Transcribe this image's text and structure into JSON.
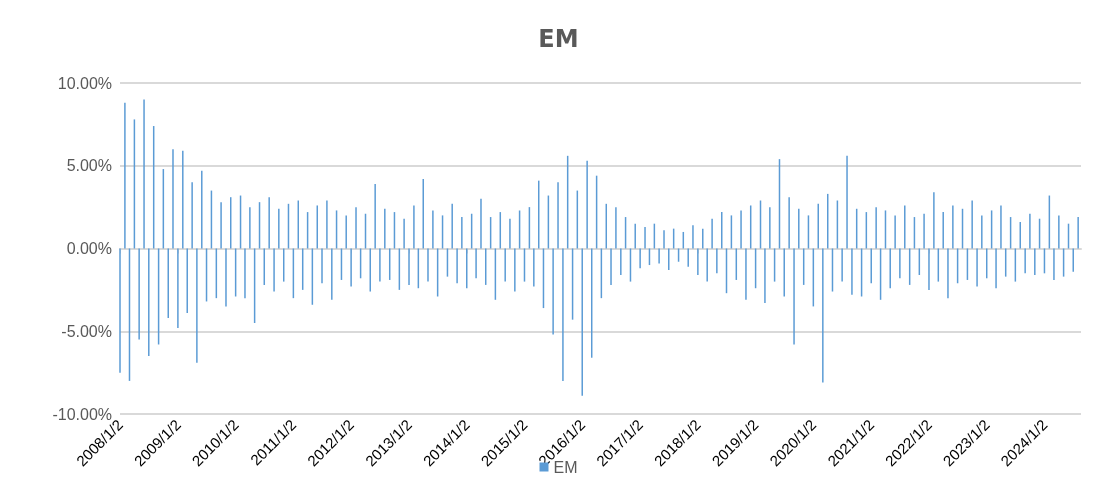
{
  "chart_data": {
    "type": "bar",
    "title": "EM",
    "legend": "bottom",
    "grid": "y",
    "x": [
      "2008-01-02",
      "2008-02-02",
      "2008-03-02",
      "2008-04-02",
      "2008-05-02",
      "2008-06-02",
      "2008-07-02",
      "2008-08-02",
      "2008-09-02",
      "2008-10-02",
      "2008-11-02",
      "2008-12-02",
      "2009-01-02",
      "2009-02-02",
      "2009-03-02",
      "2009-04-02",
      "2009-05-02",
      "2009-06-02",
      "2009-07-02",
      "2009-08-02",
      "2009-09-02",
      "2009-10-02",
      "2009-11-02",
      "2009-12-02",
      "2010-01-02",
      "2010-02-02",
      "2010-03-02",
      "2010-04-02",
      "2010-05-02",
      "2010-06-02",
      "2010-07-02",
      "2010-08-02",
      "2010-09-02",
      "2010-10-02",
      "2010-11-02",
      "2010-12-02",
      "2011-01-02",
      "2011-02-02",
      "2011-03-02",
      "2011-04-02",
      "2011-05-02",
      "2011-06-02",
      "2011-07-02",
      "2011-08-02",
      "2011-09-02",
      "2011-10-02",
      "2011-11-02",
      "2011-12-02",
      "2012-01-02",
      "2012-02-02",
      "2012-03-02",
      "2012-04-02",
      "2012-05-02",
      "2012-06-02",
      "2012-07-02",
      "2012-08-02",
      "2012-09-02",
      "2012-10-02",
      "2012-11-02",
      "2012-12-02",
      "2013-01-02",
      "2013-02-02",
      "2013-03-02",
      "2013-04-02",
      "2013-05-02",
      "2013-06-02",
      "2013-07-02",
      "2013-08-02",
      "2013-09-02",
      "2013-10-02",
      "2013-11-02",
      "2013-12-02",
      "2014-01-02",
      "2014-02-02",
      "2014-03-02",
      "2014-04-02",
      "2014-05-02",
      "2014-06-02",
      "2014-07-02",
      "2014-08-02",
      "2014-09-02",
      "2014-10-02",
      "2014-11-02",
      "2014-12-02",
      "2015-01-02",
      "2015-02-02",
      "2015-03-02",
      "2015-04-02",
      "2015-05-02",
      "2015-06-02",
      "2015-07-02",
      "2015-08-02",
      "2015-09-02",
      "2015-10-02",
      "2015-11-02",
      "2015-12-02",
      "2016-01-02",
      "2016-02-02",
      "2016-03-02",
      "2016-04-02",
      "2016-05-02",
      "2016-06-02",
      "2016-07-02",
      "2016-08-02",
      "2016-09-02",
      "2016-10-02",
      "2016-11-02",
      "2016-12-02",
      "2017-01-02",
      "2017-02-02",
      "2017-03-02",
      "2017-04-02",
      "2017-05-02",
      "2017-06-02",
      "2017-07-02",
      "2017-08-02",
      "2017-09-02",
      "2017-10-02",
      "2017-11-02",
      "2017-12-02",
      "2018-01-02",
      "2018-02-02",
      "2018-03-02",
      "2018-04-02",
      "2018-05-02",
      "2018-06-02",
      "2018-07-02",
      "2018-08-02",
      "2018-09-02",
      "2018-10-02",
      "2018-11-02",
      "2018-12-02",
      "2019-01-02",
      "2019-02-02",
      "2019-03-02",
      "2019-04-02",
      "2019-05-02",
      "2019-06-02",
      "2019-07-02",
      "2019-08-02",
      "2019-09-02",
      "2019-10-02",
      "2019-11-02",
      "2019-12-02",
      "2020-01-02",
      "2020-02-02",
      "2020-03-02",
      "2020-04-02",
      "2020-05-02",
      "2020-06-02",
      "2020-07-02",
      "2020-08-02",
      "2020-09-02",
      "2020-10-02",
      "2020-11-02",
      "2020-12-02",
      "2021-01-02",
      "2021-02-02",
      "2021-03-02",
      "2021-04-02",
      "2021-05-02",
      "2021-06-02",
      "2021-07-02",
      "2021-08-02",
      "2021-09-02",
      "2021-10-02",
      "2021-11-02",
      "2021-12-02",
      "2022-01-02",
      "2022-02-02",
      "2022-03-02",
      "2022-04-02",
      "2022-05-02",
      "2022-06-02",
      "2022-07-02",
      "2022-08-02",
      "2022-09-02",
      "2022-10-02",
      "2022-11-02",
      "2022-12-02",
      "2023-01-02",
      "2023-02-02",
      "2023-03-02",
      "2023-04-02",
      "2023-05-02",
      "2023-06-02",
      "2023-07-02",
      "2023-08-02",
      "2023-09-02",
      "2023-10-02",
      "2023-11-02",
      "2023-12-02",
      "2024-01-02",
      "2024-02-02",
      "2024-03-02",
      "2024-04-02",
      "2024-05-02",
      "2024-06-02",
      "2024-07-02",
      "2024-08-02"
    ],
    "series": [
      {
        "name": "EM",
        "color": "#5b9bd5",
        "values": [
          -7.5,
          8.8,
          -8.0,
          7.8,
          -5.5,
          9.0,
          -6.5,
          7.4,
          -5.8,
          4.8,
          -4.2,
          6.0,
          -4.8,
          5.9,
          -3.9,
          4.0,
          -6.9,
          4.7,
          -3.2,
          3.5,
          -3.0,
          2.8,
          -3.5,
          3.1,
          -2.9,
          3.2,
          -3.0,
          2.5,
          -4.5,
          2.8,
          -2.2,
          3.1,
          -2.6,
          2.4,
          -2.0,
          2.7,
          -3.0,
          2.9,
          -2.5,
          2.2,
          -3.4,
          2.6,
          -2.1,
          2.9,
          -3.1,
          2.3,
          -1.9,
          2.0,
          -2.3,
          2.5,
          -1.8,
          2.1,
          -2.6,
          3.9,
          -2.0,
          2.4,
          -1.9,
          2.2,
          -2.5,
          1.8,
          -2.2,
          2.6,
          -2.4,
          4.2,
          -2.0,
          2.3,
          -2.9,
          2.0,
          -1.7,
          2.7,
          -2.1,
          1.9,
          -2.4,
          2.1,
          -1.8,
          3.0,
          -2.2,
          1.9,
          -3.1,
          2.2,
          -2.0,
          1.8,
          -2.6,
          2.3,
          -2.0,
          2.5,
          -2.3,
          4.1,
          -3.6,
          3.2,
          -5.2,
          4.0,
          -8.0,
          5.6,
          -4.3,
          3.5,
          -8.9,
          5.3,
          -6.6,
          4.4,
          -3.0,
          2.7,
          -2.2,
          2.5,
          -1.6,
          1.9,
          -2.0,
          1.5,
          -1.2,
          1.3,
          -1.0,
          1.5,
          -0.9,
          1.1,
          -1.3,
          1.2,
          -0.8,
          1.0,
          -1.1,
          1.4,
          -1.6,
          1.2,
          -2.0,
          1.8,
          -1.5,
          2.2,
          -2.7,
          2.0,
          -1.9,
          2.3,
          -3.1,
          2.6,
          -2.4,
          2.9,
          -3.3,
          2.5,
          -2.0,
          5.4,
          -2.9,
          3.1,
          -5.8,
          2.4,
          -2.2,
          2.0,
          -3.5,
          2.7,
          -8.1,
          3.3,
          -2.6,
          2.9,
          -2.0,
          5.6,
          -2.8,
          2.4,
          -2.9,
          2.2,
          -2.1,
          2.5,
          -3.1,
          2.3,
          -2.4,
          2.0,
          -1.8,
          2.6,
          -2.2,
          1.9,
          -1.6,
          2.1,
          -2.5,
          3.4,
          -2.0,
          2.2,
          -3.0,
          2.6,
          -2.1,
          2.4,
          -1.9,
          2.9,
          -2.3,
          2.0,
          -1.8,
          2.3,
          -2.4,
          2.6,
          -1.7,
          1.9,
          -2.0,
          1.6,
          -1.5,
          2.1,
          -1.6,
          1.8,
          -1.5,
          3.2,
          -1.9,
          2.0,
          -1.7,
          1.5,
          -1.4,
          1.9
        ]
      }
    ],
    "xlim": [
      "2008-01-02",
      "2024-08-20"
    ],
    "xticks": [
      {
        "value": "2008-01-02",
        "label": "2008/1/2"
      },
      {
        "value": "2009-01-02",
        "label": "2009/1/2"
      },
      {
        "value": "2010-01-02",
        "label": "2010/1/2"
      },
      {
        "value": "2011-01-02",
        "label": "2011/1/2"
      },
      {
        "value": "2012-01-02",
        "label": "2012/1/2"
      },
      {
        "value": "2013-01-02",
        "label": "2013/1/2"
      },
      {
        "value": "2014-01-02",
        "label": "2014/1/2"
      },
      {
        "value": "2015-01-02",
        "label": "2015/1/2"
      },
      {
        "value": "2016-01-02",
        "label": "2016/1/2"
      },
      {
        "value": "2017-01-02",
        "label": "2017/1/2"
      },
      {
        "value": "2018-01-02",
        "label": "2018/1/2"
      },
      {
        "value": "2019-01-02",
        "label": "2019/1/2"
      },
      {
        "value": "2020-01-02",
        "label": "2020/1/2"
      },
      {
        "value": "2021-01-02",
        "label": "2021/1/2"
      },
      {
        "value": "2022-01-02",
        "label": "2022/1/2"
      },
      {
        "value": "2023-01-02",
        "label": "2023/1/2"
      },
      {
        "value": "2024-01-02",
        "label": "2024/1/2"
      }
    ],
    "ylim": [
      -10,
      10
    ],
    "yticks": [
      {
        "value": -10,
        "label": "-10.00%"
      },
      {
        "value": -5,
        "label": "-5.00%"
      },
      {
        "value": 0,
        "label": "0.00%"
      },
      {
        "value": 5,
        "label": "5.00%"
      },
      {
        "value": 10,
        "label": "10.00%"
      }
    ]
  }
}
